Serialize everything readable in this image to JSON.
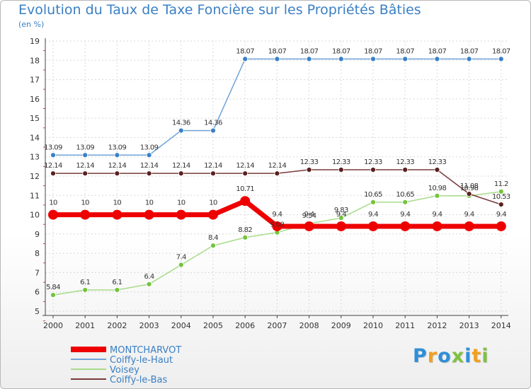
{
  "title": "Evolution du Taux de Taxe Foncière sur les Propriétés Bâties",
  "subtitle": "(en %)",
  "logo": {
    "text": "Proxiti",
    "letter_colors": [
      "#2f8fd8",
      "#f0a020",
      "#2f8fd8",
      "#7dc242",
      "#2f8fd8",
      "#f0a020",
      "#7dc242"
    ]
  },
  "chart_data": {
    "type": "line",
    "x": [
      "2000",
      "2001",
      "2002",
      "2003",
      "2004",
      "2005",
      "2006",
      "2007",
      "2008",
      "2009",
      "2010",
      "2011",
      "2012",
      "2013",
      "2014"
    ],
    "ylim": [
      5,
      19
    ],
    "yticks": [
      "5",
      "6",
      "7",
      "8",
      "9",
      "10",
      "11",
      "12",
      "13",
      "14",
      "15",
      "16",
      "17",
      "18",
      "19"
    ],
    "grid": true,
    "legend_position": "bottom-left",
    "series": [
      {
        "name": "MONTCHARVOT",
        "color": "#ee0000",
        "marker_color": "#ee0000",
        "width": 7,
        "values": [
          10,
          10,
          10,
          10,
          10,
          10,
          10.71,
          9.4,
          9.4,
          9.4,
          9.4,
          9.4,
          9.4,
          9.4,
          9.4
        ],
        "labels": [
          "10",
          "10",
          "10",
          "10",
          "10",
          "10",
          "10.71",
          "9.4",
          "9.4",
          "9.4",
          "9.4",
          "9.4",
          "9.4",
          "9.4",
          "9.4"
        ]
      },
      {
        "name": "Coiffy-le-Haut",
        "color": "#6fa3d8",
        "marker_color": "#3a80c8",
        "width": 1.5,
        "values": [
          13.09,
          13.09,
          13.09,
          13.09,
          14.36,
          14.36,
          18.07,
          18.07,
          18.07,
          18.07,
          18.07,
          18.07,
          18.07,
          18.07,
          18.07
        ],
        "labels": [
          "13.09",
          "13.09",
          "13.09",
          "13.09",
          "14.36",
          "14.36",
          "18.07",
          "18.07",
          "18.07",
          "18.07",
          "18.07",
          "18.07",
          "18.07",
          "18.07",
          "18.07"
        ]
      },
      {
        "name": "Voisey",
        "color": "#a8dc88",
        "marker_color": "#72c43c",
        "width": 1.5,
        "values": [
          5.84,
          6.1,
          6.1,
          6.4,
          7.4,
          8.4,
          8.82,
          9.08,
          9.54,
          9.83,
          10.65,
          10.65,
          10.98,
          10.98,
          11.2
        ],
        "labels": [
          "5.84",
          "6.1",
          "6.1",
          "6.4",
          "7.4",
          "8.4",
          "8.82",
          "9.08",
          "9.54",
          "9.83",
          "10.65",
          "10.65",
          "10.98",
          "10.98",
          "11.2"
        ]
      },
      {
        "name": "Coiffy-le-Bas",
        "color": "#7a3a3a",
        "marker_color": "#5a2020",
        "width": 1.5,
        "values": [
          12.14,
          12.14,
          12.14,
          12.14,
          12.14,
          12.14,
          12.14,
          12.14,
          12.33,
          12.33,
          12.33,
          12.33,
          12.33,
          11.08,
          10.53
        ],
        "labels": [
          "12.14",
          "12.14",
          "12.14",
          "12.14",
          "12.14",
          "12.14",
          "12.14",
          "12.14",
          "12.33",
          "12.33",
          "12.33",
          "12.33",
          "12.33",
          "11.08",
          "10.53"
        ]
      }
    ]
  }
}
